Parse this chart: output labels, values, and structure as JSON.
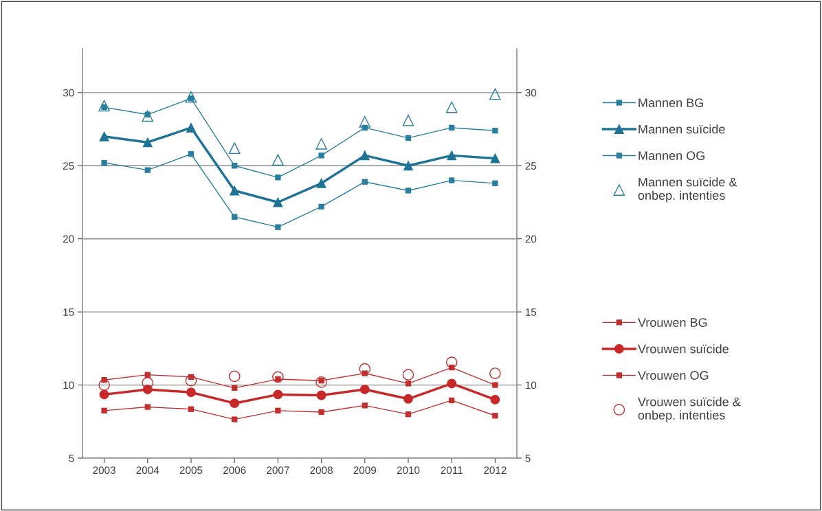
{
  "chart_data": {
    "type": "line",
    "categories": [
      "2003",
      "2004",
      "2005",
      "2006",
      "2007",
      "2008",
      "2009",
      "2010",
      "2011",
      "2012"
    ],
    "ylim": [
      5,
      33
    ],
    "yticks": [
      5,
      10,
      15,
      20,
      25,
      30
    ],
    "y2lim": [
      5,
      33
    ],
    "y2ticks": [
      5,
      10,
      15,
      20,
      25,
      30
    ],
    "grid": "y",
    "legend": "right",
    "series": [
      {
        "name": "Mannen BG",
        "color": "#2a7f9e",
        "marker": "square",
        "values": [
          29.0,
          28.5,
          29.6,
          25.0,
          24.2,
          25.7,
          27.6,
          26.9,
          27.6,
          27.4
        ]
      },
      {
        "name": "Mannen suïcide",
        "color": "#1f7396",
        "marker": "triangle",
        "values": [
          27.0,
          26.6,
          27.6,
          23.3,
          22.5,
          23.8,
          25.7,
          25.0,
          25.7,
          25.5
        ]
      },
      {
        "name": "Mannen OG",
        "color": "#2a7f9e",
        "marker": "square",
        "values": [
          25.2,
          24.7,
          25.8,
          21.5,
          20.8,
          22.2,
          23.9,
          23.3,
          24.0,
          23.8
        ]
      },
      {
        "name": "Mannen suïcide & onbep. intenties",
        "type": "scatter",
        "color": "#2a7f9e",
        "marker": "triangle",
        "values": [
          29.1,
          28.4,
          29.7,
          26.2,
          25.4,
          26.5,
          28.0,
          28.1,
          29.0,
          29.9
        ]
      },
      {
        "name": "Vrouwen BG",
        "color": "#c0302f",
        "marker": "square",
        "values": [
          10.35,
          10.7,
          10.55,
          9.8,
          10.4,
          10.3,
          10.8,
          10.1,
          11.2,
          10.0
        ]
      },
      {
        "name": "Vrouwen suïcide",
        "color": "#c8282a",
        "marker": "circle",
        "values": [
          9.35,
          9.7,
          9.5,
          8.75,
          9.35,
          9.3,
          9.7,
          9.05,
          10.1,
          9.0
        ]
      },
      {
        "name": "Vrouwen OG",
        "color": "#c0302f",
        "marker": "square",
        "values": [
          8.25,
          8.5,
          8.35,
          7.65,
          8.25,
          8.15,
          8.6,
          8.0,
          8.95,
          7.9
        ]
      },
      {
        "name": "Vrouwen suïcide & onbep. intenties",
        "type": "scatter",
        "color": "#c0302f",
        "marker": "circle",
        "values": [
          10.0,
          10.15,
          10.3,
          10.6,
          10.55,
          10.2,
          11.1,
          10.7,
          11.55,
          10.8
        ]
      }
    ]
  }
}
